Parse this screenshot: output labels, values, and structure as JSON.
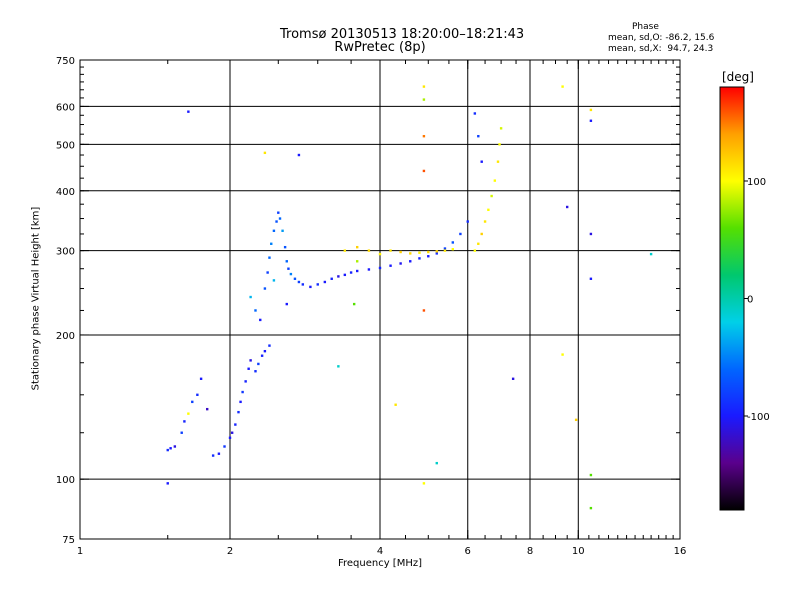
{
  "header": {
    "title_line1": "Tromsø 20130513 18:20:00–18:21:43",
    "title_line2": "RwPretec (8p)",
    "phase_heading": "Phase",
    "stat_o": "mean, sd,O: -86.2, 15.6",
    "stat_x": "mean, sd,X:  94.7, 24.3"
  },
  "chart_data": {
    "type": "scatter",
    "title": "Tromsø 20130513 18:20:00–18:21:43",
    "subtitle": "RwPretec (8p)",
    "xlabel": "Frequency [MHz]",
    "ylabel": "Stationary phase Virtual Height [km]",
    "xscale": "log",
    "yscale": "log",
    "xlim": [
      1,
      16
    ],
    "ylim": [
      75,
      750
    ],
    "xticks": [
      1,
      2,
      4,
      6,
      8,
      10,
      16
    ],
    "yticks": [
      75,
      100,
      200,
      300,
      400,
      500,
      600,
      750
    ],
    "x_gridlines": [
      2,
      4,
      6,
      8,
      10
    ],
    "y_gridlines": [
      100,
      200,
      300,
      400,
      500,
      600
    ],
    "grid": true,
    "colorbar": {
      "label": "[deg]",
      "range": [
        -180,
        180
      ],
      "ticks": [
        100,
        0,
        -100
      ],
      "colors": [
        "#000000",
        "#5a008c",
        "#1a1aff",
        "#0066ff",
        "#00d0e8",
        "#00c86e",
        "#55e000",
        "#ffff00",
        "#ffa000",
        "#ff0000"
      ],
      "placement": "right"
    },
    "points": [
      [
        1.5,
        115,
        -90
      ],
      [
        1.52,
        116,
        -100
      ],
      [
        1.55,
        117,
        -110
      ],
      [
        1.6,
        125,
        -80
      ],
      [
        1.62,
        132,
        -95
      ],
      [
        1.65,
        137,
        100
      ],
      [
        1.68,
        145,
        -80
      ],
      [
        1.72,
        150,
        -90
      ],
      [
        1.75,
        162,
        -100
      ],
      [
        1.8,
        140,
        -120
      ],
      [
        1.85,
        112,
        -90
      ],
      [
        1.9,
        113,
        -100
      ],
      [
        1.95,
        117,
        -85
      ],
      [
        2.0,
        122,
        -100
      ],
      [
        2.02,
        125,
        -110
      ],
      [
        2.05,
        130,
        -95
      ],
      [
        2.08,
        138,
        -90
      ],
      [
        2.1,
        145,
        -100
      ],
      [
        2.12,
        152,
        -85
      ],
      [
        2.15,
        160,
        -95
      ],
      [
        2.18,
        170,
        -100
      ],
      [
        2.2,
        177,
        -110
      ],
      [
        2.25,
        168,
        -90
      ],
      [
        2.28,
        174,
        -80
      ],
      [
        2.32,
        181,
        -95
      ],
      [
        2.35,
        185,
        -100
      ],
      [
        2.4,
        190,
        -90
      ],
      [
        2.2,
        240,
        -30
      ],
      [
        2.25,
        225,
        -60
      ],
      [
        2.3,
        215,
        -100
      ],
      [
        2.35,
        250,
        -70
      ],
      [
        2.38,
        270,
        -80
      ],
      [
        2.4,
        290,
        -60
      ],
      [
        2.42,
        310,
        -50
      ],
      [
        2.45,
        330,
        -60
      ],
      [
        2.48,
        345,
        -70
      ],
      [
        2.5,
        360,
        -80
      ],
      [
        2.52,
        350,
        -60
      ],
      [
        2.55,
        330,
        -40
      ],
      [
        2.58,
        305,
        -70
      ],
      [
        2.6,
        285,
        -60
      ],
      [
        2.62,
        275,
        -80
      ],
      [
        2.65,
        268,
        -50
      ],
      [
        2.7,
        262,
        -70
      ],
      [
        2.75,
        258,
        -80
      ],
      [
        2.8,
        255,
        -90
      ],
      [
        2.9,
        252,
        -100
      ],
      [
        3.0,
        255,
        -90
      ],
      [
        3.1,
        258,
        -100
      ],
      [
        3.2,
        262,
        -95
      ],
      [
        3.3,
        265,
        -110
      ],
      [
        3.4,
        267,
        -100
      ],
      [
        3.5,
        270,
        -95
      ],
      [
        3.6,
        272,
        -100
      ],
      [
        3.8,
        274,
        -100
      ],
      [
        4.0,
        276,
        -95
      ],
      [
        4.2,
        279,
        -100
      ],
      [
        4.4,
        282,
        -105
      ],
      [
        4.6,
        285,
        -100
      ],
      [
        4.8,
        289,
        -95
      ],
      [
        5.0,
        292,
        -100
      ],
      [
        5.2,
        296,
        -90
      ],
      [
        5.4,
        303,
        -80
      ],
      [
        5.6,
        312,
        -70
      ],
      [
        5.8,
        325,
        -80
      ],
      [
        6.0,
        345,
        -90
      ],
      [
        3.4,
        300,
        110
      ],
      [
        3.6,
        305,
        120
      ],
      [
        3.8,
        300,
        115
      ],
      [
        4.0,
        295,
        105
      ],
      [
        4.2,
        300,
        110
      ],
      [
        4.4,
        298,
        120
      ],
      [
        4.6,
        296,
        115
      ],
      [
        4.8,
        297,
        105
      ],
      [
        5.0,
        298,
        115
      ],
      [
        5.2,
        299,
        120
      ],
      [
        5.4,
        300,
        110
      ],
      [
        5.6,
        302,
        100
      ],
      [
        6.2,
        300,
        100
      ],
      [
        6.3,
        310,
        110
      ],
      [
        6.4,
        325,
        120
      ],
      [
        6.5,
        345,
        110
      ],
      [
        6.6,
        365,
        100
      ],
      [
        6.7,
        390,
        90
      ],
      [
        6.8,
        420,
        100
      ],
      [
        6.9,
        460,
        110
      ],
      [
        6.95,
        500,
        100
      ],
      [
        7.0,
        540,
        90
      ],
      [
        6.2,
        580,
        -90
      ],
      [
        6.3,
        520,
        -80
      ],
      [
        6.4,
        460,
        -100
      ],
      [
        4.9,
        660,
        110
      ],
      [
        4.9,
        620,
        80
      ],
      [
        4.9,
        520,
        150
      ],
      [
        4.9,
        440,
        160
      ],
      [
        1.65,
        585,
        -100
      ],
      [
        2.35,
        480,
        110
      ],
      [
        2.75,
        475,
        -100
      ],
      [
        9.3,
        660,
        100
      ],
      [
        10.6,
        590,
        110
      ],
      [
        10.6,
        560,
        -100
      ],
      [
        10.6,
        325,
        -110
      ],
      [
        9.5,
        370,
        -110
      ],
      [
        10.6,
        262,
        -100
      ],
      [
        14,
        295,
        -10
      ],
      [
        7.4,
        162,
        -110
      ],
      [
        9.3,
        182,
        100
      ],
      [
        9.9,
        133,
        120
      ],
      [
        10.6,
        102,
        60
      ],
      [
        10.6,
        87,
        60
      ],
      [
        5.2,
        108,
        -10
      ],
      [
        4.9,
        98,
        100
      ],
      [
        4.3,
        143,
        110
      ],
      [
        4.9,
        225,
        160
      ],
      [
        3.6,
        285,
        80
      ],
      [
        3.55,
        232,
        60
      ],
      [
        3.3,
        172,
        -10
      ],
      [
        1.5,
        98,
        -100
      ],
      [
        2.6,
        232,
        -100
      ],
      [
        2.45,
        260,
        -30
      ]
    ]
  }
}
